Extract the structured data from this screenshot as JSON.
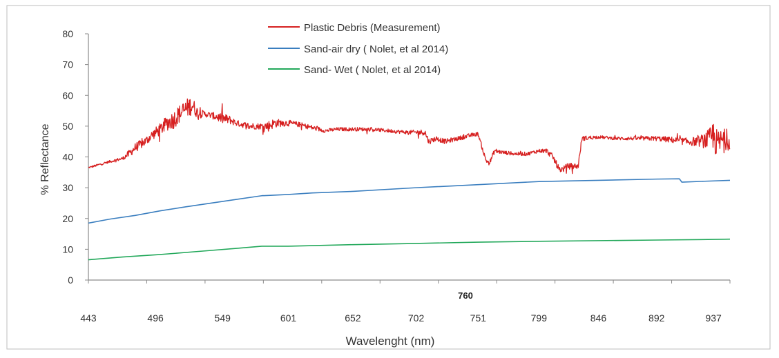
{
  "chart_data": {
    "type": "line",
    "ylabel": "% Reflectance",
    "xlabel": "Wavelenght (nm)",
    "annotation": "760",
    "ylim": [
      0,
      80
    ],
    "yticks": [
      0,
      10,
      20,
      30,
      40,
      50,
      60,
      70,
      80
    ],
    "xlim": [
      443,
      950
    ],
    "xticks": [
      443,
      496,
      549,
      601,
      652,
      702,
      751,
      799,
      846,
      892,
      937
    ],
    "grid": false,
    "legend_position": "top-center",
    "series": [
      {
        "name": "Plastic Debris (Measurement)",
        "color": "#d62020",
        "noisy": true,
        "x": [
          443,
          460,
          470,
          475,
          480,
          488,
          493,
          500,
          505,
          510,
          515,
          520,
          525,
          528,
          530,
          535,
          540,
          545,
          549,
          555,
          560,
          565,
          570,
          575,
          580,
          585,
          590,
          595,
          601,
          610,
          620,
          630,
          640,
          652,
          665,
          680,
          695,
          702,
          709,
          712,
          718,
          725,
          735,
          745,
          751,
          757,
          760,
          764,
          770,
          780,
          790,
          799,
          805,
          810,
          815,
          818,
          822,
          828,
          830,
          833,
          846,
          860,
          875,
          892,
          905,
          915,
          925,
          932,
          935,
          937,
          940,
          945,
          948,
          950
        ],
        "y": [
          36.5,
          38.5,
          39.5,
          41,
          43,
          45,
          47,
          49,
          51,
          52,
          54,
          55.5,
          57,
          55,
          54,
          54,
          53.5,
          53,
          52.5,
          52,
          51,
          50.5,
          50,
          50,
          50,
          50,
          51,
          51,
          51,
          50.5,
          49.5,
          48.5,
          49,
          49,
          49,
          48.5,
          48,
          48,
          48,
          45,
          46,
          45,
          46,
          47,
          47.5,
          39,
          38,
          42,
          41.5,
          41,
          41,
          42,
          42,
          40,
          36,
          36,
          37,
          37,
          37,
          46,
          46.5,
          46,
          46,
          46,
          45.5,
          45,
          45,
          45.5,
          46,
          47,
          44,
          46,
          45,
          45
        ],
        "noise": [
          0.3,
          0.4,
          0.5,
          1.2,
          1.5,
          1.5,
          1.6,
          2.0,
          2.5,
          3.0,
          3.0,
          3.2,
          3.2,
          2.0,
          1.6,
          1.0,
          1.0,
          1.5,
          1.8,
          1.4,
          1.0,
          1.0,
          1.2,
          1.0,
          1.0,
          1.8,
          1.5,
          1.2,
          1.0,
          0.8,
          0.8,
          0.6,
          0.6,
          0.6,
          0.6,
          0.6,
          0.6,
          0.8,
          1.0,
          1.0,
          0.8,
          0.8,
          0.7,
          0.7,
          0.6,
          0.8,
          0.8,
          0.8,
          0.6,
          0.6,
          0.6,
          0.6,
          0.8,
          1.0,
          1.0,
          1.0,
          1.0,
          1.0,
          1.0,
          0.8,
          0.5,
          0.5,
          0.6,
          0.8,
          1.0,
          1.2,
          1.6,
          3.0,
          4.0,
          5.5,
          4.5,
          3.5,
          3.0,
          2.5
        ]
      },
      {
        "name": "Sand-air dry ( Nolet, et al 2014)",
        "color": "#3a7ebf",
        "x": [
          443,
          460,
          480,
          500,
          520,
          540,
          560,
          580,
          601,
          620,
          652,
          702,
          751,
          799,
          846,
          892,
          910,
          912,
          930,
          950
        ],
        "y": [
          18.5,
          19.8,
          21.0,
          22.5,
          23.8,
          25.0,
          26.2,
          27.4,
          27.8,
          28.3,
          28.8,
          30.0,
          31.0,
          32.0,
          32.4,
          32.8,
          32.9,
          31.8,
          32.1,
          32.4
        ]
      },
      {
        "name": "Sand- Wet ( Nolet, et al 2014)",
        "color": "#22a85a",
        "x": [
          443,
          470,
          500,
          530,
          560,
          580,
          601,
          652,
          702,
          751,
          799,
          846,
          892,
          937,
          950
        ],
        "y": [
          6.6,
          7.5,
          8.3,
          9.3,
          10.3,
          11.0,
          11.0,
          11.5,
          11.9,
          12.3,
          12.6,
          12.8,
          13.0,
          13.2,
          13.3
        ]
      }
    ]
  }
}
